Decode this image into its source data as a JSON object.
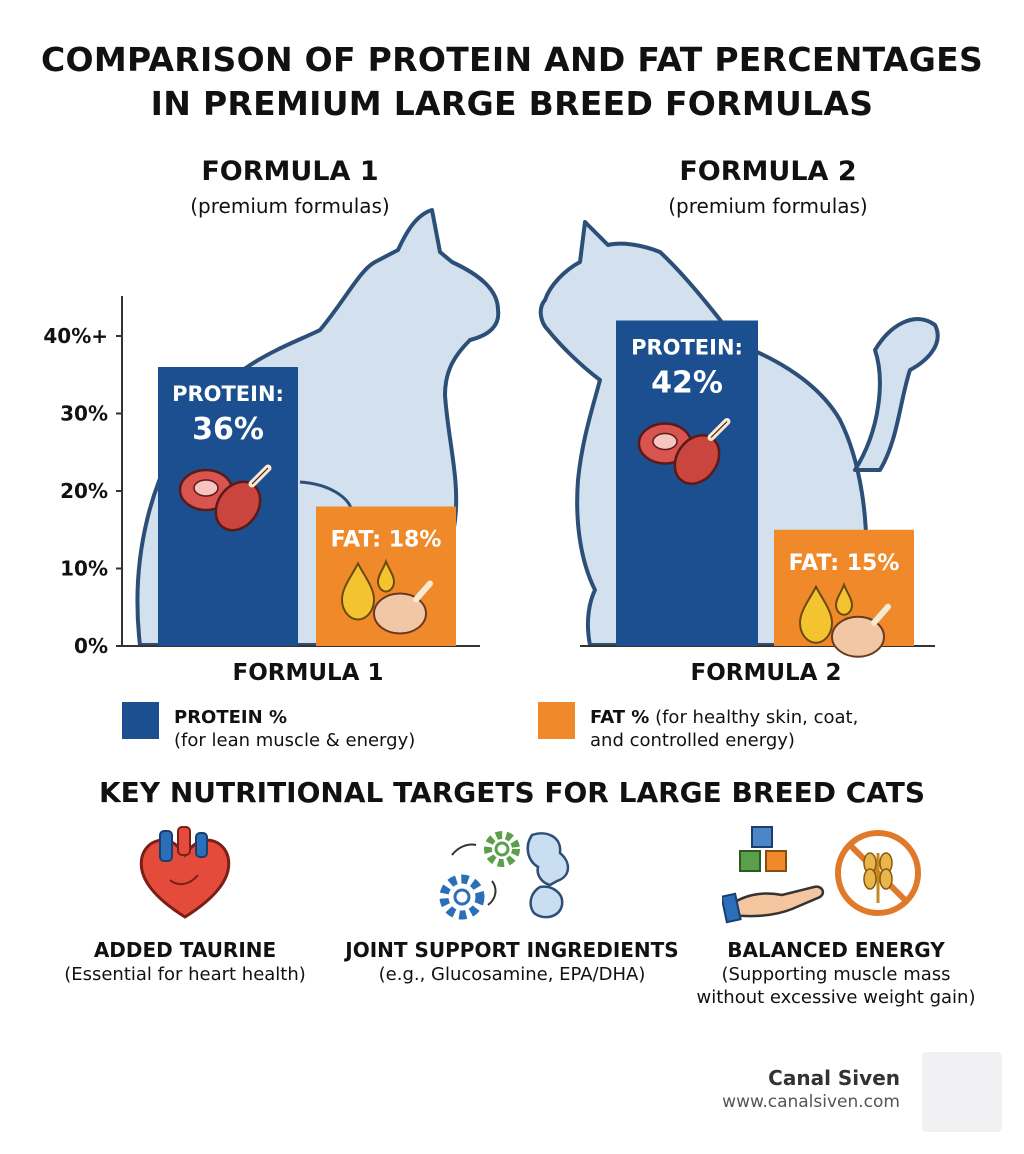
{
  "title": {
    "line1": "COMPARISON OF PROTEIN AND FAT PERCENTAGES",
    "line2": "IN PREMIUM LARGE BREED FORMULAS"
  },
  "colors": {
    "protein": "#1b4f8f",
    "fat": "#f0892a",
    "cat_fill": "#d3e0ee",
    "cat_stroke": "#2c4f78",
    "axis": "#333333"
  },
  "chart_data": [
    {
      "type": "bar",
      "title": "FORMULA 1",
      "subtitle": "(premium formulas)",
      "categories": [
        "FORMULA 1"
      ],
      "series": [
        {
          "name": "PROTEIN %",
          "values": [
            36
          ],
          "label": "PROTEIN:",
          "value_label": "36%"
        },
        {
          "name": "FAT %",
          "values": [
            18
          ],
          "label": "FAT:",
          "value_label": "18%"
        }
      ],
      "yticks": [
        "0%",
        "10%",
        "20%",
        "30%",
        "40%+"
      ],
      "ylim": [
        0,
        45
      ],
      "grid": false
    },
    {
      "type": "bar",
      "title": "FORMULA 2",
      "subtitle": "(premium formulas)",
      "categories": [
        "FORMULA 2"
      ],
      "series": [
        {
          "name": "PROTEIN %",
          "values": [
            42
          ],
          "label": "PROTEIN:",
          "value_label": "42%"
        },
        {
          "name": "FAT %",
          "values": [
            15
          ],
          "label": "FAT:",
          "value_label": "15%"
        }
      ],
      "ylim": [
        0,
        45
      ],
      "grid": false
    }
  ],
  "legend": {
    "protein_title": "PROTEIN %",
    "protein_desc": "(for lean muscle & energy)",
    "fat_title": "FAT %",
    "fat_desc_1": " (for healthy skin, coat,",
    "fat_desc_2": "and controlled energy)"
  },
  "targets": {
    "heading": "KEY NUTRITIONAL TARGETS FOR LARGE BREED CATS",
    "items": [
      {
        "title": "ADDED TAURINE",
        "desc1": "(Essential for heart health)",
        "desc2": "",
        "icon": "heart-icon"
      },
      {
        "title": "JOINT SUPPORT INGREDIENTS",
        "desc1": "(e.g., Glucosamine, EPA/DHA)",
        "desc2": "",
        "icon": "gears-joint-icon"
      },
      {
        "title": "BALANCED ENERGY",
        "desc1": "(Supporting muscle mass",
        "desc2": "without excessive weight gain)",
        "icon": "balance-no-grain-icon"
      }
    ]
  },
  "brand": {
    "name": "Canal Siven",
    "url": "www.canalsiven.com"
  }
}
